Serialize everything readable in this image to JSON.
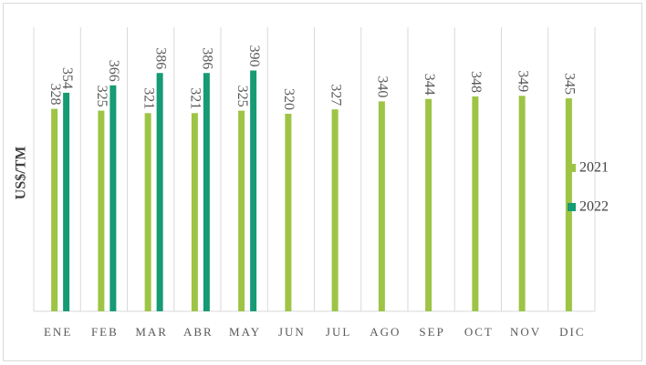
{
  "chart_data": {
    "type": "bar",
    "y_label": "US$/TM",
    "categories": [
      "ENE",
      "FEB",
      "MAR",
      "ABR",
      "MAY",
      "JUN",
      "JUL",
      "AGO",
      "SEP",
      "OCT",
      "NOV",
      "DIC"
    ],
    "series": [
      {
        "name": "2021",
        "color": "#9dc444",
        "values": [
          328,
          325,
          321,
          321,
          325,
          320,
          327,
          340,
          344,
          348,
          349,
          345
        ]
      },
      {
        "name": "2022",
        "color": "#169b74",
        "values": [
          354,
          366,
          386,
          386,
          390,
          null,
          null,
          null,
          null,
          null,
          null,
          null
        ]
      }
    ],
    "ylim": [
      0,
      460
    ],
    "legend": "right"
  }
}
